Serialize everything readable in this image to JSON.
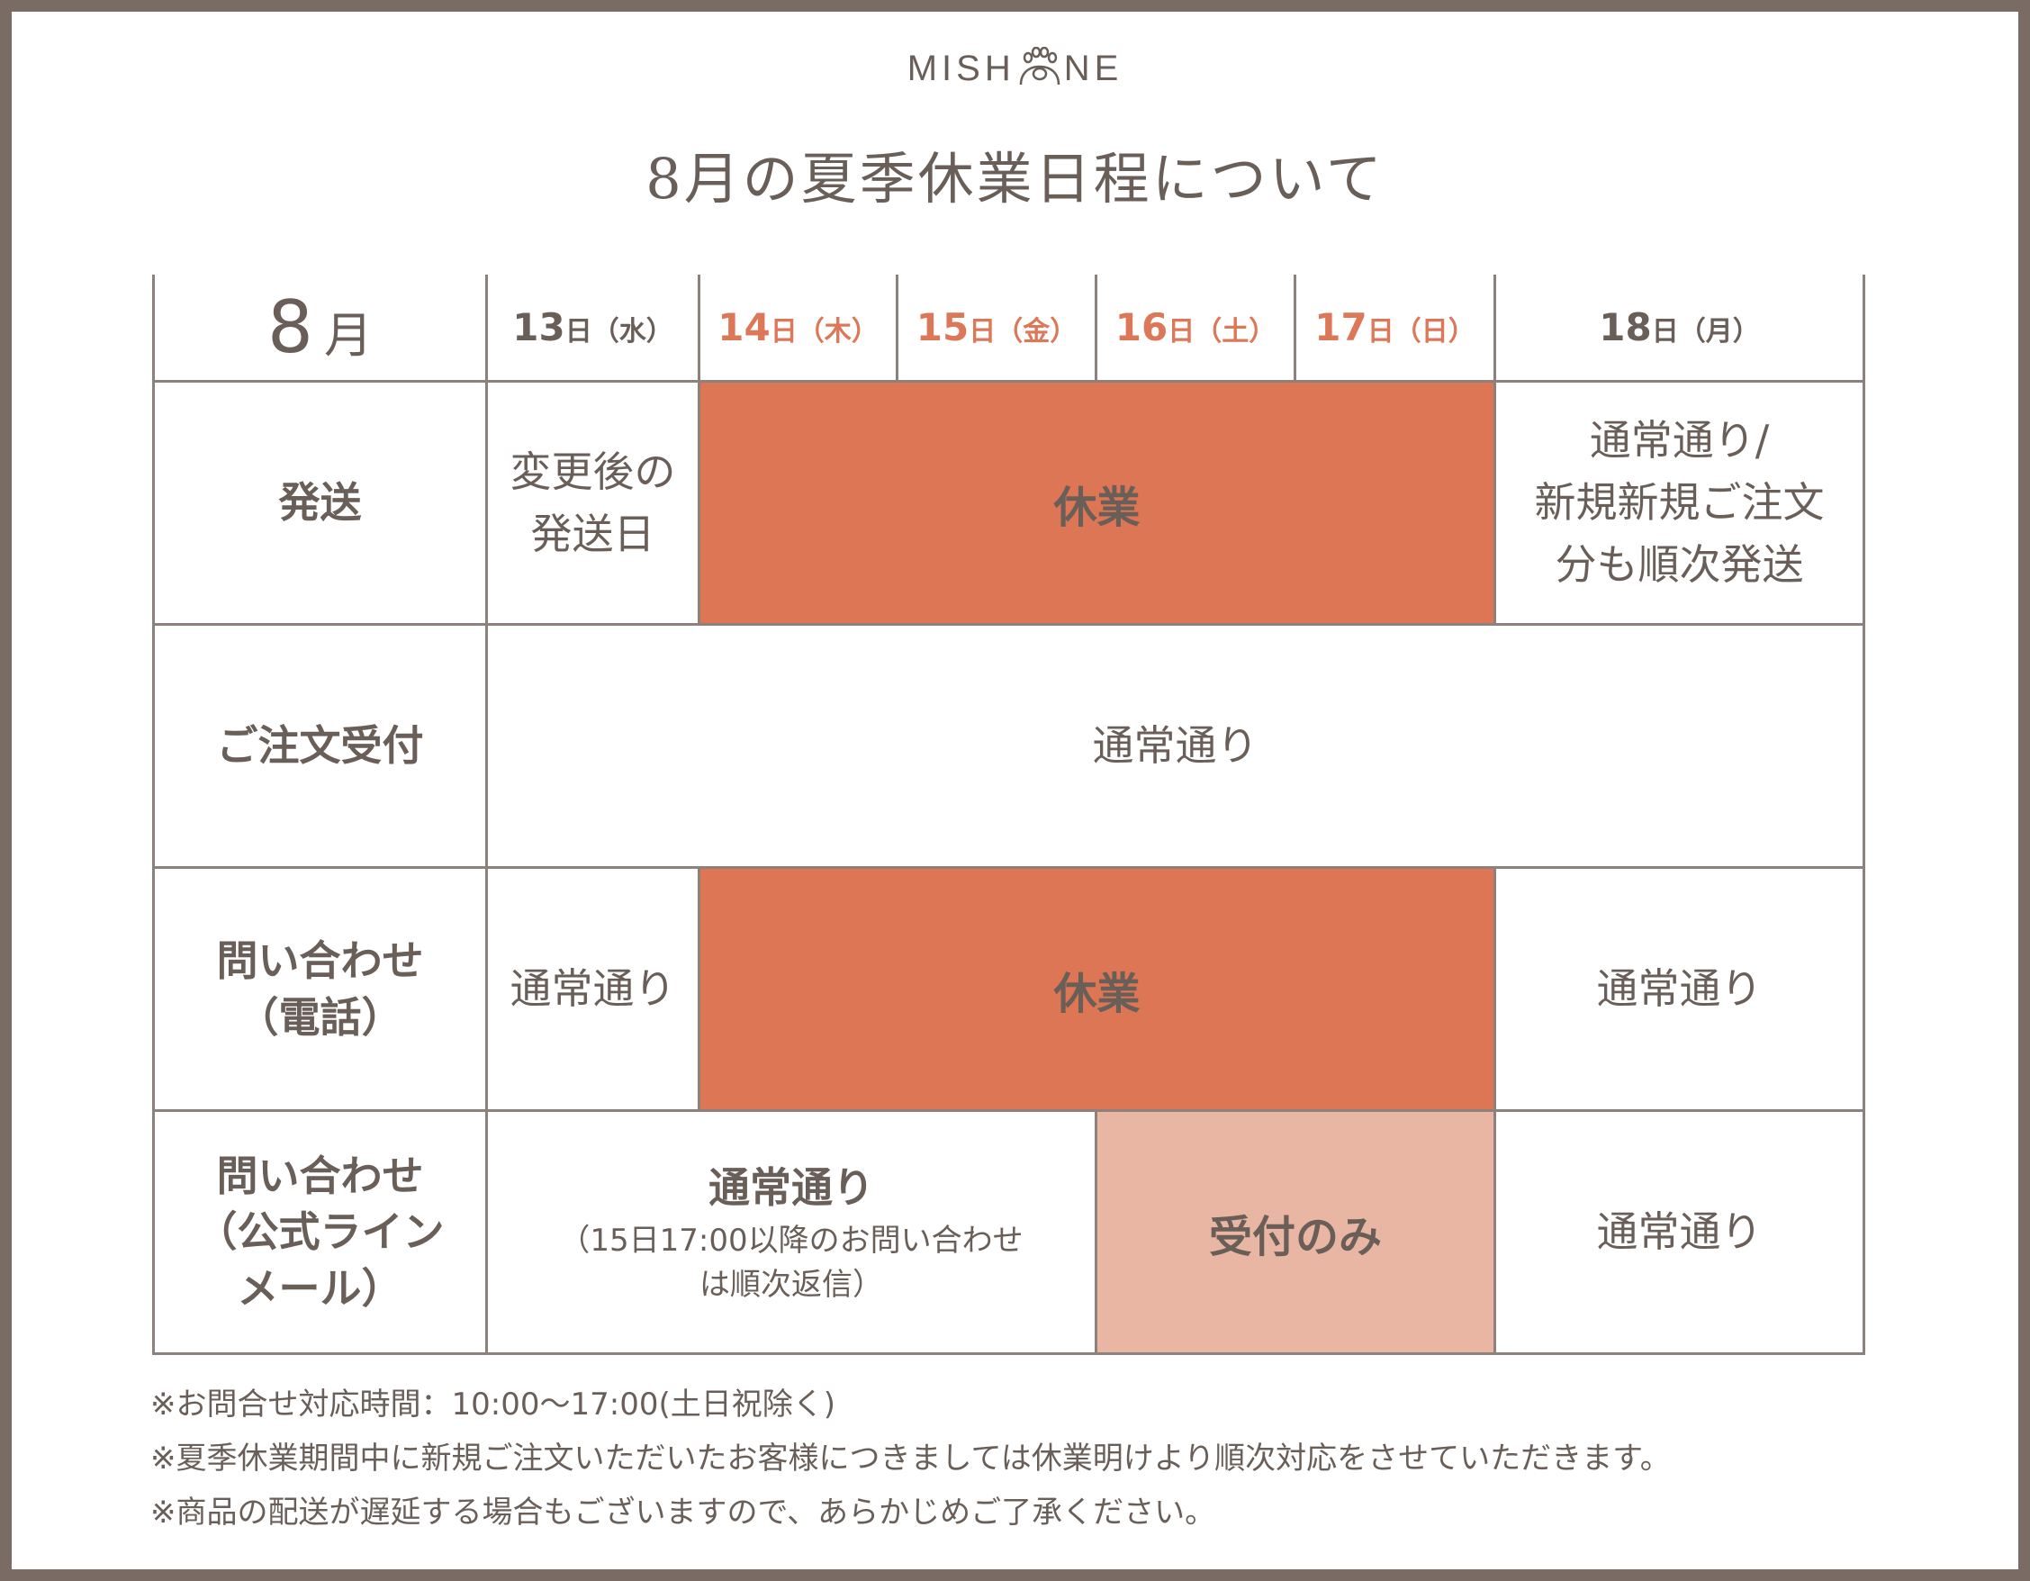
{
  "brand": {
    "logo_text_left": "MISH",
    "logo_text_right": "NE",
    "logo_mark": "paw-icon"
  },
  "title": "8月の夏季休業日程について",
  "header": {
    "month_number": "8",
    "month_unit": "月",
    "days": [
      {
        "num": "13",
        "unit": "日（水）",
        "highlight": false
      },
      {
        "num": "14",
        "unit": "日（木）",
        "highlight": true
      },
      {
        "num": "15",
        "unit": "日（金）",
        "highlight": true
      },
      {
        "num": "16",
        "unit": "日（土）",
        "highlight": true
      },
      {
        "num": "17",
        "unit": "日（日）",
        "highlight": true
      },
      {
        "num": "18",
        "unit": "日（月）",
        "highlight": false
      }
    ]
  },
  "rows": {
    "shipping": {
      "label": "発送",
      "day13_line1": "変更後の",
      "day13_line2": "発送日",
      "closed": "休業",
      "day18_line1": "通常通り/",
      "day18_line2": "新規新規ご注文",
      "day18_line3": "分も順次発送"
    },
    "orders": {
      "label": "ご注文受付",
      "all": "通常通り"
    },
    "phone": {
      "label_line1": "問い合わせ",
      "label_line2": "（電話）",
      "day13": "通常通り",
      "closed": "休業",
      "day18": "通常通り"
    },
    "line_mail": {
      "label_line1": "問い合わせ",
      "label_line2": "（公式ライン",
      "label_line3": "メール）",
      "early_main": "通常通り",
      "early_sub1": "（15日17:00以降のお問い合わせ",
      "early_sub2": "は順次返信）",
      "reception_only": "受付のみ",
      "day18": "通常通り"
    }
  },
  "notes": [
    "※お問合せ対応時間：10:00〜17:00(土日祝除く)",
    "※夏季休業期間中に新規ご注文いただいたお客様につきましては休業明けより順次対応をさせていただきます。",
    "※商品の配送が遅延する場合もございますので、あらかじめご了承ください。"
  ],
  "colors": {
    "closed": "#dc7654",
    "reception_only": "#e8b6a3",
    "highlight_text": "#dc7758",
    "frame": "#7a6c64",
    "text": "#6a5f58"
  }
}
